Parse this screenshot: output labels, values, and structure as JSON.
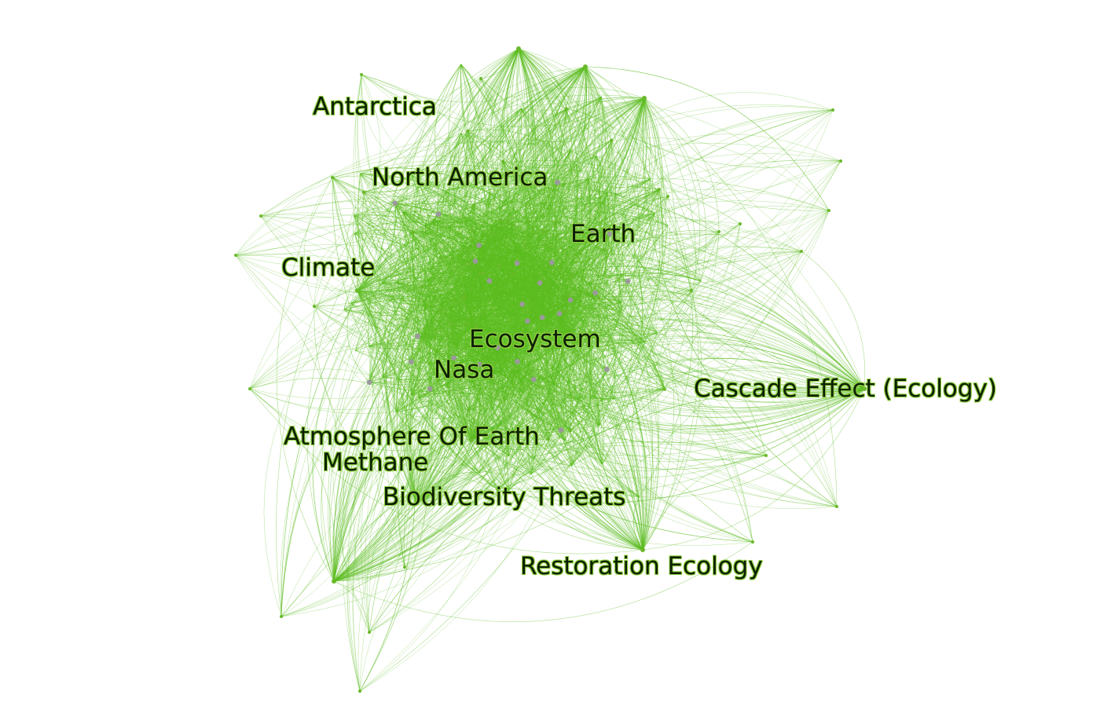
{
  "graph": {
    "edge_color": "#5cbd1f",
    "node_color": "#6ab92a",
    "hub_node_color": "#9a9a9a",
    "label_color": "#0d1f05",
    "labels": [
      "Antarctica",
      "North America",
      "Earth",
      "Climate",
      "Ecosystem",
      "Nasa",
      "Cascade Effect (Ecology)",
      "Atmosphere Of Earth",
      "Methane",
      "Biodiversity Threats",
      "Restoration Ecology"
    ]
  }
}
